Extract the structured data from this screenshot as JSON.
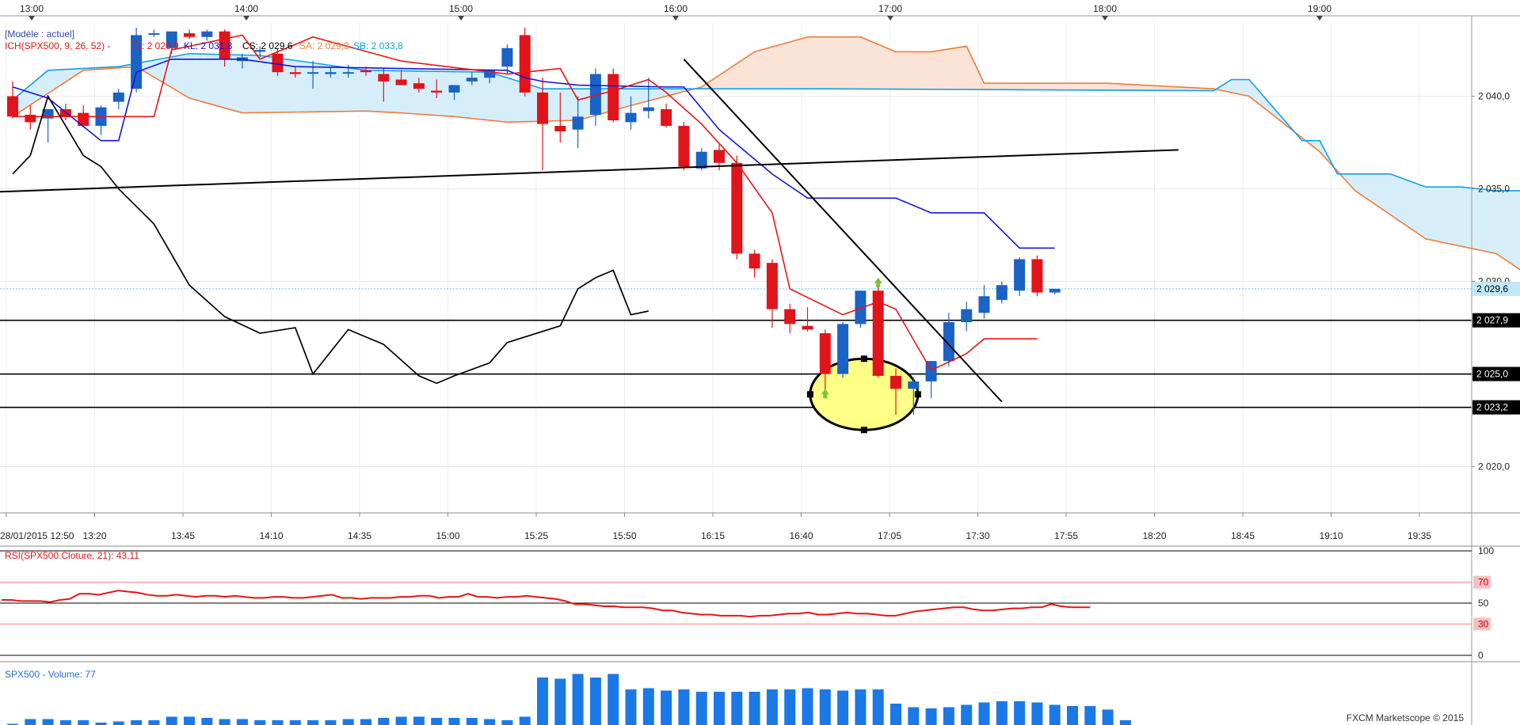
{
  "app": {
    "template_label": "[Modèle : actuel]",
    "copyright": "FXCM Marketscope © 2015"
  },
  "colors": {
    "up": "#1a62c4",
    "down": "#e0141a",
    "tenkan": "#e51616",
    "kijun": "#1414e0",
    "senkou_a": "#12a0e6",
    "senkou_b": "#f07a3a",
    "kumo_bear": "#fbe3d8",
    "kumo_bull": "#d6eefa",
    "chikou": "#000000",
    "rsi": "#e51616",
    "volume": "#1a79e6",
    "marker": "#77c23a",
    "highlight": "#ffff88"
  },
  "top_time_axis": [
    "13:00",
    "14:00",
    "15:00",
    "16:00",
    "17:00",
    "18:00",
    "19:00"
  ],
  "bottom_time_axis": [
    "28/01/2015 12:50",
    "13:20",
    "13:45",
    "14:10",
    "14:35",
    "15:00",
    "15:25",
    "15:50",
    "16:15",
    "16:40",
    "17:05",
    "17:30",
    "17:55",
    "18:20",
    "18:45",
    "19:10",
    "19:35"
  ],
  "chart_data": [
    {
      "type": "candlestick",
      "panel": "price",
      "symbol": "SPX500",
      "indicator_label": {
        "name": "ICH(SPX500, 9, 26, 52) -",
        "tl": "TL: 2 026,9",
        "kl": "KL: 2 031,8",
        "cs": "CS: 2 029,6",
        "sa": "SA: 2 029,3",
        "sb": "SB: 2 033,8"
      },
      "y_ticks": [
        "2 040,0",
        "2 035,0",
        "2 030,0",
        "2 025,0",
        "2 020,0"
      ],
      "ylim": [
        2017.5,
        2044.0
      ],
      "current_price": "2 029,6",
      "horizontal_levels": [
        {
          "value": 2027.9,
          "label": "2 027,9"
        },
        {
          "value": 2025.0,
          "label": "2 025,0"
        },
        {
          "value": 2023.2,
          "label": "2 023,2"
        }
      ],
      "candles": [
        {
          "t": "12:50",
          "o": 2040.0,
          "h": 2040.8,
          "l": 2038.8,
          "c": 2038.9
        },
        {
          "t": "12:55",
          "o": 2039.0,
          "h": 2039.5,
          "l": 2038.2,
          "c": 2038.6
        },
        {
          "t": "13:00",
          "o": 2038.8,
          "h": 2039.3,
          "l": 2037.5,
          "c": 2039.3
        },
        {
          "t": "13:05",
          "o": 2039.3,
          "h": 2039.6,
          "l": 2038.7,
          "c": 2038.9
        },
        {
          "t": "13:10",
          "o": 2039.1,
          "h": 2039.5,
          "l": 2038.3,
          "c": 2038.4
        },
        {
          "t": "13:15",
          "o": 2038.4,
          "h": 2039.5,
          "l": 2037.9,
          "c": 2039.4
        },
        {
          "t": "13:20",
          "o": 2039.7,
          "h": 2040.4,
          "l": 2039.3,
          "c": 2040.2
        },
        {
          "t": "13:25",
          "o": 2040.4,
          "h": 2043.7,
          "l": 2040.2,
          "c": 2043.3
        },
        {
          "t": "13:30",
          "o": 2043.4,
          "h": 2043.6,
          "l": 2043.2,
          "c": 2043.4
        },
        {
          "t": "13:35",
          "o": 2042.6,
          "h": 2043.5,
          "l": 2042.3,
          "c": 2043.5
        },
        {
          "t": "14:00",
          "o": 2043.4,
          "h": 2043.6,
          "l": 2043.1,
          "c": 2043.2
        },
        {
          "t": "14:05",
          "o": 2043.2,
          "h": 2043.6,
          "l": 2043.0,
          "c": 2043.5
        },
        {
          "t": "14:10",
          "o": 2043.5,
          "h": 2043.6,
          "l": 2041.6,
          "c": 2042.0
        },
        {
          "t": "14:15",
          "o": 2041.9,
          "h": 2042.3,
          "l": 2041.5,
          "c": 2042.1
        },
        {
          "t": "14:20",
          "o": 2042.4,
          "h": 2042.7,
          "l": 2042.1,
          "c": 2042.5
        },
        {
          "t": "14:25",
          "o": 2042.3,
          "h": 2042.6,
          "l": 2041.1,
          "c": 2041.3
        },
        {
          "t": "14:30",
          "o": 2041.3,
          "h": 2041.6,
          "l": 2041.0,
          "c": 2041.2
        },
        {
          "t": "14:35",
          "o": 2041.3,
          "h": 2041.9,
          "l": 2040.4,
          "c": 2041.3
        },
        {
          "t": "14:40",
          "o": 2041.2,
          "h": 2041.6,
          "l": 2041.0,
          "c": 2041.3
        },
        {
          "t": "14:45",
          "o": 2041.3,
          "h": 2041.7,
          "l": 2041.0,
          "c": 2041.3
        },
        {
          "t": "14:50",
          "o": 2041.4,
          "h": 2041.6,
          "l": 2041.1,
          "c": 2041.3
        },
        {
          "t": "14:55",
          "o": 2041.2,
          "h": 2041.5,
          "l": 2039.7,
          "c": 2040.8
        },
        {
          "t": "15:00",
          "o": 2040.9,
          "h": 2041.4,
          "l": 2040.6,
          "c": 2040.6
        },
        {
          "t": "15:05",
          "o": 2040.7,
          "h": 2041.0,
          "l": 2040.2,
          "c": 2040.4
        },
        {
          "t": "15:10",
          "o": 2040.3,
          "h": 2040.9,
          "l": 2039.9,
          "c": 2040.2
        },
        {
          "t": "15:15",
          "o": 2040.2,
          "h": 2040.6,
          "l": 2039.8,
          "c": 2040.6
        },
        {
          "t": "15:20",
          "o": 2040.8,
          "h": 2041.3,
          "l": 2040.6,
          "c": 2041.0
        },
        {
          "t": "15:25",
          "o": 2041.0,
          "h": 2041.4,
          "l": 2040.7,
          "c": 2041.4
        },
        {
          "t": "15:30",
          "o": 2041.6,
          "h": 2042.8,
          "l": 2041.2,
          "c": 2042.6
        },
        {
          "t": "15:35",
          "o": 2043.3,
          "h": 2043.7,
          "l": 2040.0,
          "c": 2040.2
        },
        {
          "t": "15:40",
          "o": 2040.2,
          "h": 2041.0,
          "l": 2036.0,
          "c": 2038.5
        },
        {
          "t": "15:45",
          "o": 2038.4,
          "h": 2040.2,
          "l": 2037.5,
          "c": 2038.1
        },
        {
          "t": "15:50",
          "o": 2038.2,
          "h": 2040.0,
          "l": 2037.2,
          "c": 2038.9
        },
        {
          "t": "15:55",
          "o": 2039.0,
          "h": 2041.5,
          "l": 2038.4,
          "c": 2041.2
        },
        {
          "t": "16:00",
          "o": 2041.2,
          "h": 2041.5,
          "l": 2038.6,
          "c": 2038.7
        },
        {
          "t": "16:05",
          "o": 2038.6,
          "h": 2040.0,
          "l": 2038.2,
          "c": 2039.1
        },
        {
          "t": "16:10",
          "o": 2039.2,
          "h": 2041.0,
          "l": 2038.8,
          "c": 2039.4
        },
        {
          "t": "16:15",
          "o": 2039.3,
          "h": 2039.6,
          "l": 2038.3,
          "c": 2038.4
        },
        {
          "t": "16:20",
          "o": 2038.4,
          "h": 2038.6,
          "l": 2036.0,
          "c": 2036.2
        },
        {
          "t": "16:25",
          "o": 2036.1,
          "h": 2037.2,
          "l": 2036.0,
          "c": 2037.0
        },
        {
          "t": "16:30",
          "o": 2037.1,
          "h": 2037.4,
          "l": 2036.0,
          "c": 2036.4
        },
        {
          "t": "16:35",
          "o": 2036.4,
          "h": 2036.8,
          "l": 2031.2,
          "c": 2031.5
        },
        {
          "t": "16:40",
          "o": 2031.5,
          "h": 2031.7,
          "l": 2030.2,
          "c": 2030.7
        },
        {
          "t": "16:45",
          "o": 2031.0,
          "h": 2031.2,
          "l": 2027.5,
          "c": 2028.5
        },
        {
          "t": "16:50",
          "o": 2028.5,
          "h": 2028.8,
          "l": 2027.2,
          "c": 2027.7
        },
        {
          "t": "16:55",
          "o": 2027.6,
          "h": 2028.6,
          "l": 2027.3,
          "c": 2027.4
        },
        {
          "t": "17:00",
          "o": 2027.2,
          "h": 2027.4,
          "l": 2023.8,
          "c": 2025.0
        },
        {
          "t": "17:05",
          "o": 2025.0,
          "h": 2027.8,
          "l": 2024.8,
          "c": 2027.7
        },
        {
          "t": "17:10",
          "o": 2027.7,
          "h": 2029.5,
          "l": 2027.5,
          "c": 2029.5
        },
        {
          "t": "17:15",
          "o": 2029.5,
          "h": 2029.7,
          "l": 2024.8,
          "c": 2024.9
        },
        {
          "t": "17:20",
          "o": 2024.9,
          "h": 2025.3,
          "l": 2022.8,
          "c": 2024.2
        },
        {
          "t": "17:25",
          "o": 2024.2,
          "h": 2024.8,
          "l": 2022.8,
          "c": 2024.6
        },
        {
          "t": "17:30",
          "o": 2024.6,
          "h": 2025.7,
          "l": 2023.7,
          "c": 2025.7
        },
        {
          "t": "17:35",
          "o": 2025.7,
          "h": 2028.3,
          "l": 2025.4,
          "c": 2027.8
        },
        {
          "t": "17:40",
          "o": 2027.8,
          "h": 2028.9,
          "l": 2027.3,
          "c": 2028.5
        },
        {
          "t": "17:45",
          "o": 2028.3,
          "h": 2029.8,
          "l": 2028.0,
          "c": 2029.2
        },
        {
          "t": "17:50",
          "o": 2029.0,
          "h": 2030.0,
          "l": 2028.8,
          "c": 2029.8
        },
        {
          "t": "17:55",
          "o": 2029.5,
          "h": 2031.3,
          "l": 2029.2,
          "c": 2031.2
        },
        {
          "t": "18:00",
          "o": 2031.2,
          "h": 2031.4,
          "l": 2029.2,
          "c": 2029.4
        },
        {
          "t": "18:05",
          "o": 2029.4,
          "h": 2029.6,
          "l": 2029.3,
          "c": 2029.6
        }
      ],
      "tenkan": [
        [
          2038.9,
          0
        ],
        [
          2038.9,
          8
        ],
        [
          2042.5,
          9
        ],
        [
          2043.3,
          13
        ],
        [
          2042.0,
          14
        ],
        [
          2043.2,
          17
        ],
        [
          2041.9,
          22
        ],
        [
          2041.2,
          28
        ],
        [
          2041.5,
          31
        ],
        [
          2039.8,
          32
        ],
        [
          2040.3,
          34
        ],
        [
          2040.9,
          36
        ],
        [
          2040.2,
          37
        ],
        [
          2038.5,
          39
        ],
        [
          2036.4,
          41
        ],
        [
          2033.7,
          43
        ],
        [
          2029.6,
          44
        ],
        [
          2028.2,
          47
        ],
        [
          2028.9,
          49
        ],
        [
          2028.5,
          50
        ],
        [
          2025.2,
          52
        ],
        [
          2026.1,
          54
        ],
        [
          2026.9,
          55
        ],
        [
          2026.9,
          58
        ]
      ],
      "kijun": [
        [
          2040.5,
          0
        ],
        [
          2039.9,
          2
        ],
        [
          2037.6,
          5
        ],
        [
          2037.6,
          6
        ],
        [
          2041.3,
          7
        ],
        [
          2042.0,
          9
        ],
        [
          2042.0,
          13
        ],
        [
          2041.6,
          16
        ],
        [
          2041.4,
          28
        ],
        [
          2041.0,
          29
        ],
        [
          2040.8,
          30
        ],
        [
          2040.6,
          32
        ],
        [
          2040.5,
          37
        ],
        [
          2040.5,
          38
        ],
        [
          2038.2,
          40
        ],
        [
          2035.8,
          43
        ],
        [
          2034.5,
          45
        ],
        [
          2034.5,
          50
        ],
        [
          2033.7,
          52
        ],
        [
          2033.7,
          55
        ],
        [
          2031.8,
          57
        ],
        [
          2031.8,
          59
        ]
      ],
      "senkou_a": [
        [
          2039.8,
          0
        ],
        [
          2041.4,
          2
        ],
        [
          2041.6,
          6
        ],
        [
          2042.3,
          10
        ],
        [
          2042.2,
          14
        ],
        [
          2041.4,
          20
        ],
        [
          2041.3,
          27
        ],
        [
          2040.4,
          30
        ],
        [
          2040.4,
          46
        ],
        [
          2040.3,
          68
        ],
        [
          2040.9,
          69
        ],
        [
          2040.9,
          70
        ],
        [
          2038.7,
          72
        ],
        [
          2037.6,
          73
        ],
        [
          2037.6,
          74
        ],
        [
          2035.8,
          75
        ],
        [
          2035.8,
          78
        ],
        [
          2035.1,
          80
        ],
        [
          2035.1,
          82
        ],
        [
          2034.9,
          84
        ],
        [
          2034.9,
          86
        ]
      ],
      "senkou_b": [
        [
          2038.9,
          0
        ],
        [
          2041.4,
          4
        ],
        [
          2041.6,
          7
        ],
        [
          2039.9,
          10
        ],
        [
          2039.1,
          13
        ],
        [
          2039.2,
          20
        ],
        [
          2039.1,
          22
        ],
        [
          2038.9,
          25
        ],
        [
          2038.6,
          28
        ],
        [
          2038.7,
          32
        ],
        [
          2039.5,
          35
        ],
        [
          2040.5,
          39
        ],
        [
          2042.4,
          42
        ],
        [
          2043.2,
          45
        ],
        [
          2043.2,
          48
        ],
        [
          2042.4,
          50
        ],
        [
          2042.4,
          52
        ],
        [
          2042.7,
          54
        ],
        [
          2040.7,
          55
        ],
        [
          2040.7,
          62
        ],
        [
          2040.4,
          68
        ],
        [
          2040.0,
          70
        ],
        [
          2037.0,
          74
        ],
        [
          2034.9,
          76
        ],
        [
          2032.3,
          80
        ],
        [
          2031.5,
          84
        ],
        [
          2030.2,
          86
        ]
      ],
      "chikou": [
        [
          2035.8,
          0
        ],
        [
          2036.8,
          1
        ],
        [
          2040.0,
          2
        ],
        [
          2036.8,
          4
        ],
        [
          2036.2,
          5
        ],
        [
          2035.0,
          6
        ],
        [
          2033.1,
          8
        ],
        [
          2029.8,
          10
        ],
        [
          2028.1,
          12
        ],
        [
          2027.2,
          14
        ],
        [
          2027.5,
          16
        ],
        [
          2025.0,
          17
        ],
        [
          2027.4,
          19
        ],
        [
          2026.6,
          21
        ],
        [
          2024.9,
          23
        ],
        [
          2024.5,
          24
        ],
        [
          2024.9,
          25
        ],
        [
          2025.6,
          27
        ],
        [
          2026.7,
          28
        ],
        [
          2027.6,
          31
        ],
        [
          2029.6,
          32
        ],
        [
          2030.2,
          33
        ],
        [
          2030.6,
          34
        ],
        [
          2028.2,
          35
        ],
        [
          2028.4,
          36
        ]
      ],
      "trendlines": [
        {
          "from": [
            2034.8,
            -2
          ],
          "to": [
            2037.1,
            66
          ]
        },
        {
          "from": [
            2042.0,
            38
          ],
          "to": [
            2023.5,
            56
          ]
        }
      ]
    },
    {
      "type": "line",
      "panel": "rsi",
      "label": "RSI(SPX500.Cloture, 21): 43,11",
      "y_ticks": [
        "100",
        "70",
        "50",
        "30",
        "0"
      ],
      "ylim": [
        0,
        100
      ],
      "levels": [
        70,
        50,
        30
      ],
      "values": [
        53,
        53,
        52,
        52,
        52,
        51,
        53,
        54,
        59,
        59,
        58,
        60,
        62,
        61,
        60,
        58,
        57,
        57,
        58,
        57,
        56,
        57,
        57,
        56,
        57,
        56,
        55,
        55,
        56,
        56,
        55,
        55,
        56,
        57,
        58,
        55,
        55,
        54,
        55,
        55,
        55,
        56,
        56,
        57,
        57,
        55,
        56,
        56,
        59,
        56,
        56,
        55,
        56,
        56,
        57,
        56,
        55,
        54,
        52,
        49,
        49,
        48,
        47,
        47,
        46,
        46,
        46,
        45,
        43,
        43,
        41,
        40,
        39,
        39,
        38,
        38,
        38,
        37,
        38,
        38,
        39,
        40,
        40,
        41,
        39,
        39,
        40,
        41,
        40,
        40,
        39,
        38,
        38,
        40,
        42,
        43,
        44,
        45,
        46,
        46,
        44,
        43,
        43,
        44,
        45,
        45,
        46,
        46,
        49,
        47,
        46,
        46,
        46
      ]
    },
    {
      "type": "bar",
      "panel": "volume",
      "label": "SPX500 - Volume: 77",
      "values": [
        1,
        5,
        5,
        4,
        4,
        2,
        3,
        4,
        4,
        7,
        7,
        6,
        5,
        5,
        4,
        4,
        4,
        4,
        4,
        5,
        5,
        6,
        7,
        7,
        6,
        6,
        6,
        5,
        4,
        7,
        40,
        39,
        43,
        40,
        43,
        30,
        31,
        29,
        30,
        28,
        28,
        28,
        28,
        30,
        30,
        31,
        30,
        29,
        30,
        30,
        18,
        15,
        14,
        15,
        17,
        19,
        20,
        20,
        19,
        17,
        16,
        16,
        13,
        4
      ]
    }
  ]
}
